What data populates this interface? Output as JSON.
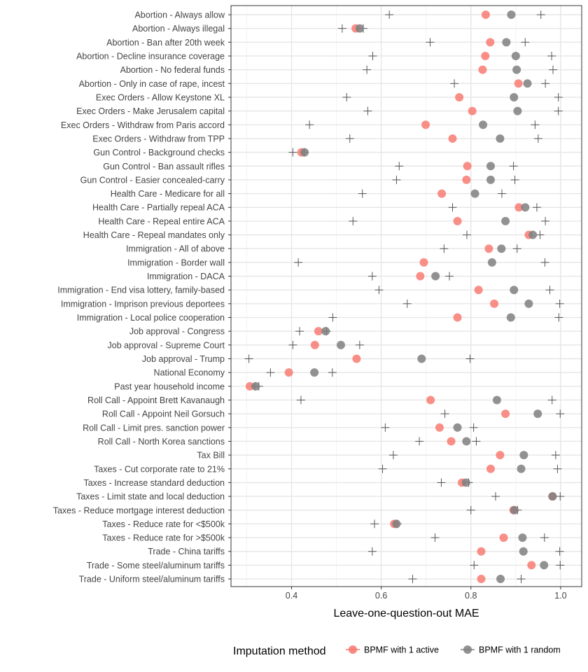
{
  "chart_data": {
    "type": "scatter",
    "title": "",
    "xlabel": "Leave-one-question-out MAE",
    "ylabel": "",
    "xlim": [
      0.265,
      1.047
    ],
    "xticks": [
      0.4,
      0.6,
      0.8,
      1.0
    ],
    "xtick_labels": [
      "0.4",
      "0.6",
      "0.8",
      "1.0"
    ],
    "grid": true,
    "legend_position": "bottom",
    "legend_title": "Imputation method",
    "colors": {
      "active": "#f8766d",
      "random": "#7f7f7f",
      "plus": "#555555"
    },
    "categories": [
      "Abortion - Always allow",
      "Abortion - Always illegal",
      "Abortion - Ban after 20th week",
      "Abortion - Decline insurance coverage",
      "Abortion - No federal funds",
      "Abortion - Only in case of rape, incest",
      "Exec Orders - Allow Keystone XL",
      "Exec Orders - Make Jerusalem capital",
      "Exec Orders - Withdraw from Paris accord",
      "Exec Orders - Withdraw from TPP",
      "Gun Control - Background checks",
      "Gun Control - Ban assault rifles",
      "Gun Control - Easier concealed-carry",
      "Health Care - Medicare for all",
      "Health Care - Partially repeal ACA",
      "Health Care - Repeal entire ACA",
      "Health Care - Repeal mandates only",
      "Immigration - All of above",
      "Immigration - Border wall",
      "Immigration - DACA",
      "Immigration - End visa lottery, family-based",
      "Immigration - Imprison previous deportees",
      "Immigration - Local police cooperation",
      "Job approval - Congress",
      "Job approval - Supreme Court",
      "Job approval - Trump",
      "National Economy",
      "Past year household income",
      "Roll Call - Appoint Brett Kavanaugh",
      "Roll Call - Appoint Neil Gorsuch",
      "Roll Call - Limit pres. sanction power",
      "Roll Call - North Korea sanctions",
      "Tax Bill",
      "Taxes - Cut corporate rate to 21%",
      "Taxes - Increase standard deduction",
      "Taxes - Limit state and local deduction",
      "Taxes - Reduce mortgage interest deduction",
      "Taxes - Reduce rate for <$500k",
      "Taxes - Reduce rate for >$500k",
      "Trade - China tariffs",
      "Trade - Some steel/aluminum tariffs",
      "Trade - Uniform steel/aluminum tariffs"
    ],
    "series": [
      {
        "name": "BPMF with 1 active",
        "marker": "circle",
        "values": [
          0.833,
          0.543,
          0.843,
          0.832,
          0.826,
          0.906,
          0.774,
          0.803,
          0.699,
          0.759,
          0.422,
          0.792,
          0.79,
          0.735,
          0.907,
          0.77,
          0.929,
          0.84,
          0.695,
          0.687,
          0.817,
          0.852,
          0.77,
          0.46,
          0.452,
          0.545,
          0.394,
          0.307,
          0.71,
          0.877,
          0.73,
          0.756,
          0.865,
          0.844,
          0.78,
          0.982,
          0.895,
          0.629,
          0.873,
          0.823,
          0.935,
          0.823
        ]
      },
      {
        "name": "BPMF with 1 random",
        "marker": "circle",
        "values": [
          0.89,
          0.552,
          0.879,
          0.9,
          0.902,
          0.926,
          0.896,
          0.904,
          0.827,
          0.865,
          0.429,
          0.844,
          0.844,
          0.809,
          0.921,
          0.877,
          0.938,
          0.868,
          0.847,
          0.721,
          0.896,
          0.929,
          0.889,
          0.476,
          0.51,
          0.69,
          0.451,
          0.32,
          0.858,
          0.949,
          0.77,
          0.79,
          0.918,
          0.912,
          0.789,
          0.982,
          0.897,
          0.634,
          0.915,
          0.917,
          0.963,
          0.866
        ]
      },
      {
        "name": "Range lower",
        "marker": "plus",
        "values": [
          0.618,
          0.513,
          0.709,
          0.581,
          0.568,
          0.763,
          0.523,
          0.57,
          0.44,
          0.53,
          0.403,
          0.64,
          0.634,
          0.558,
          0.759,
          0.537,
          0.791,
          0.74,
          0.415,
          0.58,
          0.595,
          0.658,
          0.492,
          0.418,
          0.403,
          0.305,
          0.353,
          0.327,
          0.421,
          0.742,
          0.609,
          0.685,
          0.627,
          0.603,
          0.734,
          0.855,
          0.8,
          0.585,
          0.72,
          0.58,
          0.807,
          0.67
        ]
      },
      {
        "name": "Range upper",
        "marker": "plus",
        "values": [
          0.956,
          0.56,
          0.921,
          0.98,
          0.983,
          0.966,
          0.995,
          0.995,
          0.943,
          0.95,
          0.429,
          0.895,
          0.898,
          0.869,
          0.947,
          0.966,
          0.954,
          0.903,
          0.965,
          0.752,
          0.976,
          0.998,
          0.996,
          0.478,
          0.552,
          0.798,
          0.491,
          0.318,
          0.981,
          0.999,
          0.806,
          0.812,
          0.989,
          0.993,
          0.795,
          0.999,
          0.904,
          0.636,
          0.964,
          0.998,
          0.999,
          0.912
        ]
      }
    ]
  }
}
